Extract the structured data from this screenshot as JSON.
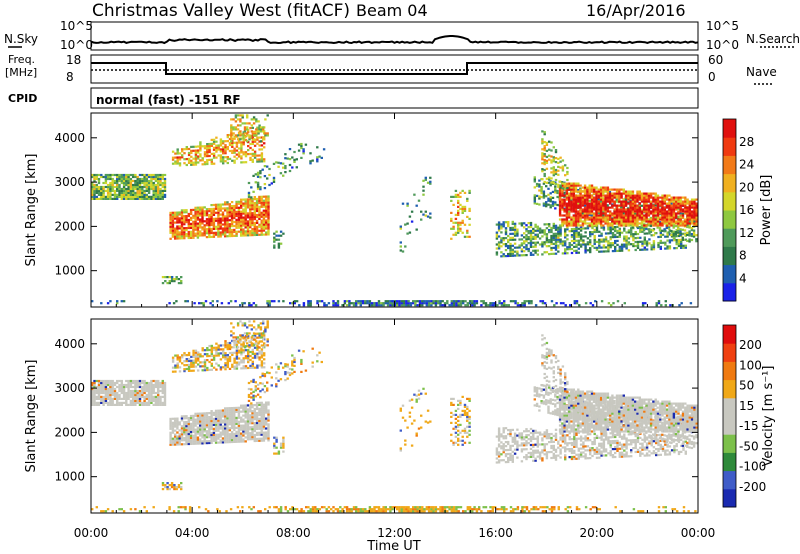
{
  "header": {
    "title": "Christmas Valley West (fitACF)",
    "beam": "Beam 04",
    "date": "16/Apr/2016"
  },
  "strip": {
    "nsky_label": "N.Sky",
    "nsky_ticks": [
      "10^5",
      "10^0"
    ],
    "nsearch_label": "N.Search",
    "nsearch_ticks": [
      "10^5",
      "10^0"
    ],
    "freq_label_1": "Freq.",
    "freq_label_2": "[MHz]",
    "freq_ticks": [
      "18",
      "8"
    ],
    "nave_label": "Nave",
    "nave_ticks": [
      "60",
      "0"
    ],
    "cpid_label": "CPID",
    "cpid_value": "normal (fast) -151 RF"
  },
  "chart_data": [
    {
      "type": "heatmap",
      "name": "power-panel",
      "ylabel": "Slant Range [km]",
      "ylim": [
        180,
        4560
      ],
      "yticks": [
        "1000",
        "2000",
        "3000",
        "4000"
      ],
      "xlim": [
        0,
        24
      ],
      "colorbar_label": "Power [dB]",
      "colorbar_ticks": [
        "28",
        "24",
        "20",
        "16",
        "12",
        "8",
        "4"
      ],
      "colorscale": [
        "#1a22e8",
        "#1f5fb0",
        "#2f7a4a",
        "#4f9a5a",
        "#8ec840",
        "#d4d62a",
        "#f0b020",
        "#f27a18",
        "#f03a10",
        "#e0100e"
      ]
    },
    {
      "type": "heatmap",
      "name": "velocity-panel",
      "ylabel": "Slant Range [km]",
      "ylim": [
        180,
        4560
      ],
      "yticks": [
        "1000",
        "2000",
        "3000",
        "4000"
      ],
      "xlim": [
        0,
        24
      ],
      "colorbar_label": "Velocity [m s⁻¹]",
      "colorbar_ticks": [
        "200",
        "100",
        "50",
        "15",
        "-15",
        "-50",
        "-100",
        "-200"
      ],
      "colorscale": [
        "#1a2ab0",
        "#3f5cc8",
        "#2e8a3a",
        "#7cc04a",
        "#c8c8c0",
        "#c8c8c0",
        "#f0a818",
        "#f07a10",
        "#f04010",
        "#e00c0c"
      ]
    }
  ],
  "xaxis": {
    "label": "Time UT",
    "ticks": [
      "00:00",
      "04:00",
      "08:00",
      "12:00",
      "16:00",
      "20:00",
      "00:00"
    ]
  }
}
